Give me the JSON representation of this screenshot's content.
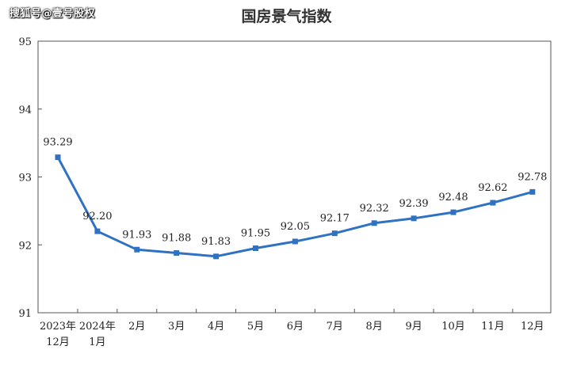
{
  "watermark": "搜狐号@壹号股权",
  "chart_data": {
    "type": "line",
    "title": "国房景气指数",
    "xlabel": "",
    "ylabel": "",
    "categories": [
      [
        "2023年",
        "12月"
      ],
      [
        "2024年",
        "1月"
      ],
      [
        "2月"
      ],
      [
        "3月"
      ],
      [
        "4月"
      ],
      [
        "5月"
      ],
      [
        "6月"
      ],
      [
        "7月"
      ],
      [
        "8月"
      ],
      [
        "9月"
      ],
      [
        "10月"
      ],
      [
        "11月"
      ],
      [
        "12月"
      ]
    ],
    "values": [
      93.29,
      92.2,
      91.93,
      91.88,
      91.83,
      91.95,
      92.05,
      92.17,
      92.32,
      92.39,
      92.48,
      92.62,
      92.78
    ],
    "data_labels": [
      "93.29",
      "92.20",
      "91.93",
      "91.88",
      "91.83",
      "91.95",
      "92.05",
      "92.17",
      "92.32",
      "92.39",
      "92.48",
      "92.62",
      "92.78"
    ],
    "ylim": [
      91,
      95
    ],
    "yticks": [
      91,
      92,
      93,
      94,
      95
    ],
    "grid": false,
    "line_color": "#2f72c4"
  }
}
